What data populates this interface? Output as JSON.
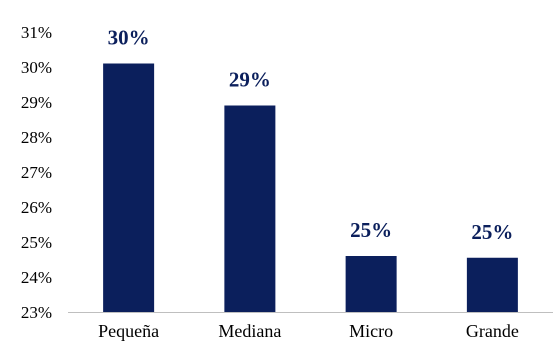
{
  "chart_data": {
    "type": "bar",
    "categories": [
      "Pequeña",
      "Mediana",
      "Micro",
      "Grande"
    ],
    "values": [
      30.1,
      28.9,
      24.6,
      24.55
    ],
    "data_labels": [
      "30%",
      "29%",
      "25%",
      "25%"
    ],
    "ylim": [
      23,
      31
    ],
    "yticks": [
      23,
      24,
      25,
      26,
      27,
      28,
      29,
      30,
      31
    ],
    "ytick_labels": [
      "23%",
      "24%",
      "25%",
      "26%",
      "27%",
      "28%",
      "29%",
      "30%",
      "31%"
    ],
    "title": "",
    "xlabel": "",
    "ylabel": "",
    "grid": false,
    "legend": "none",
    "bar_color": "#0b1f5c",
    "label_color": "#0b1f5c",
    "axis_color": "#bfbfbf"
  }
}
